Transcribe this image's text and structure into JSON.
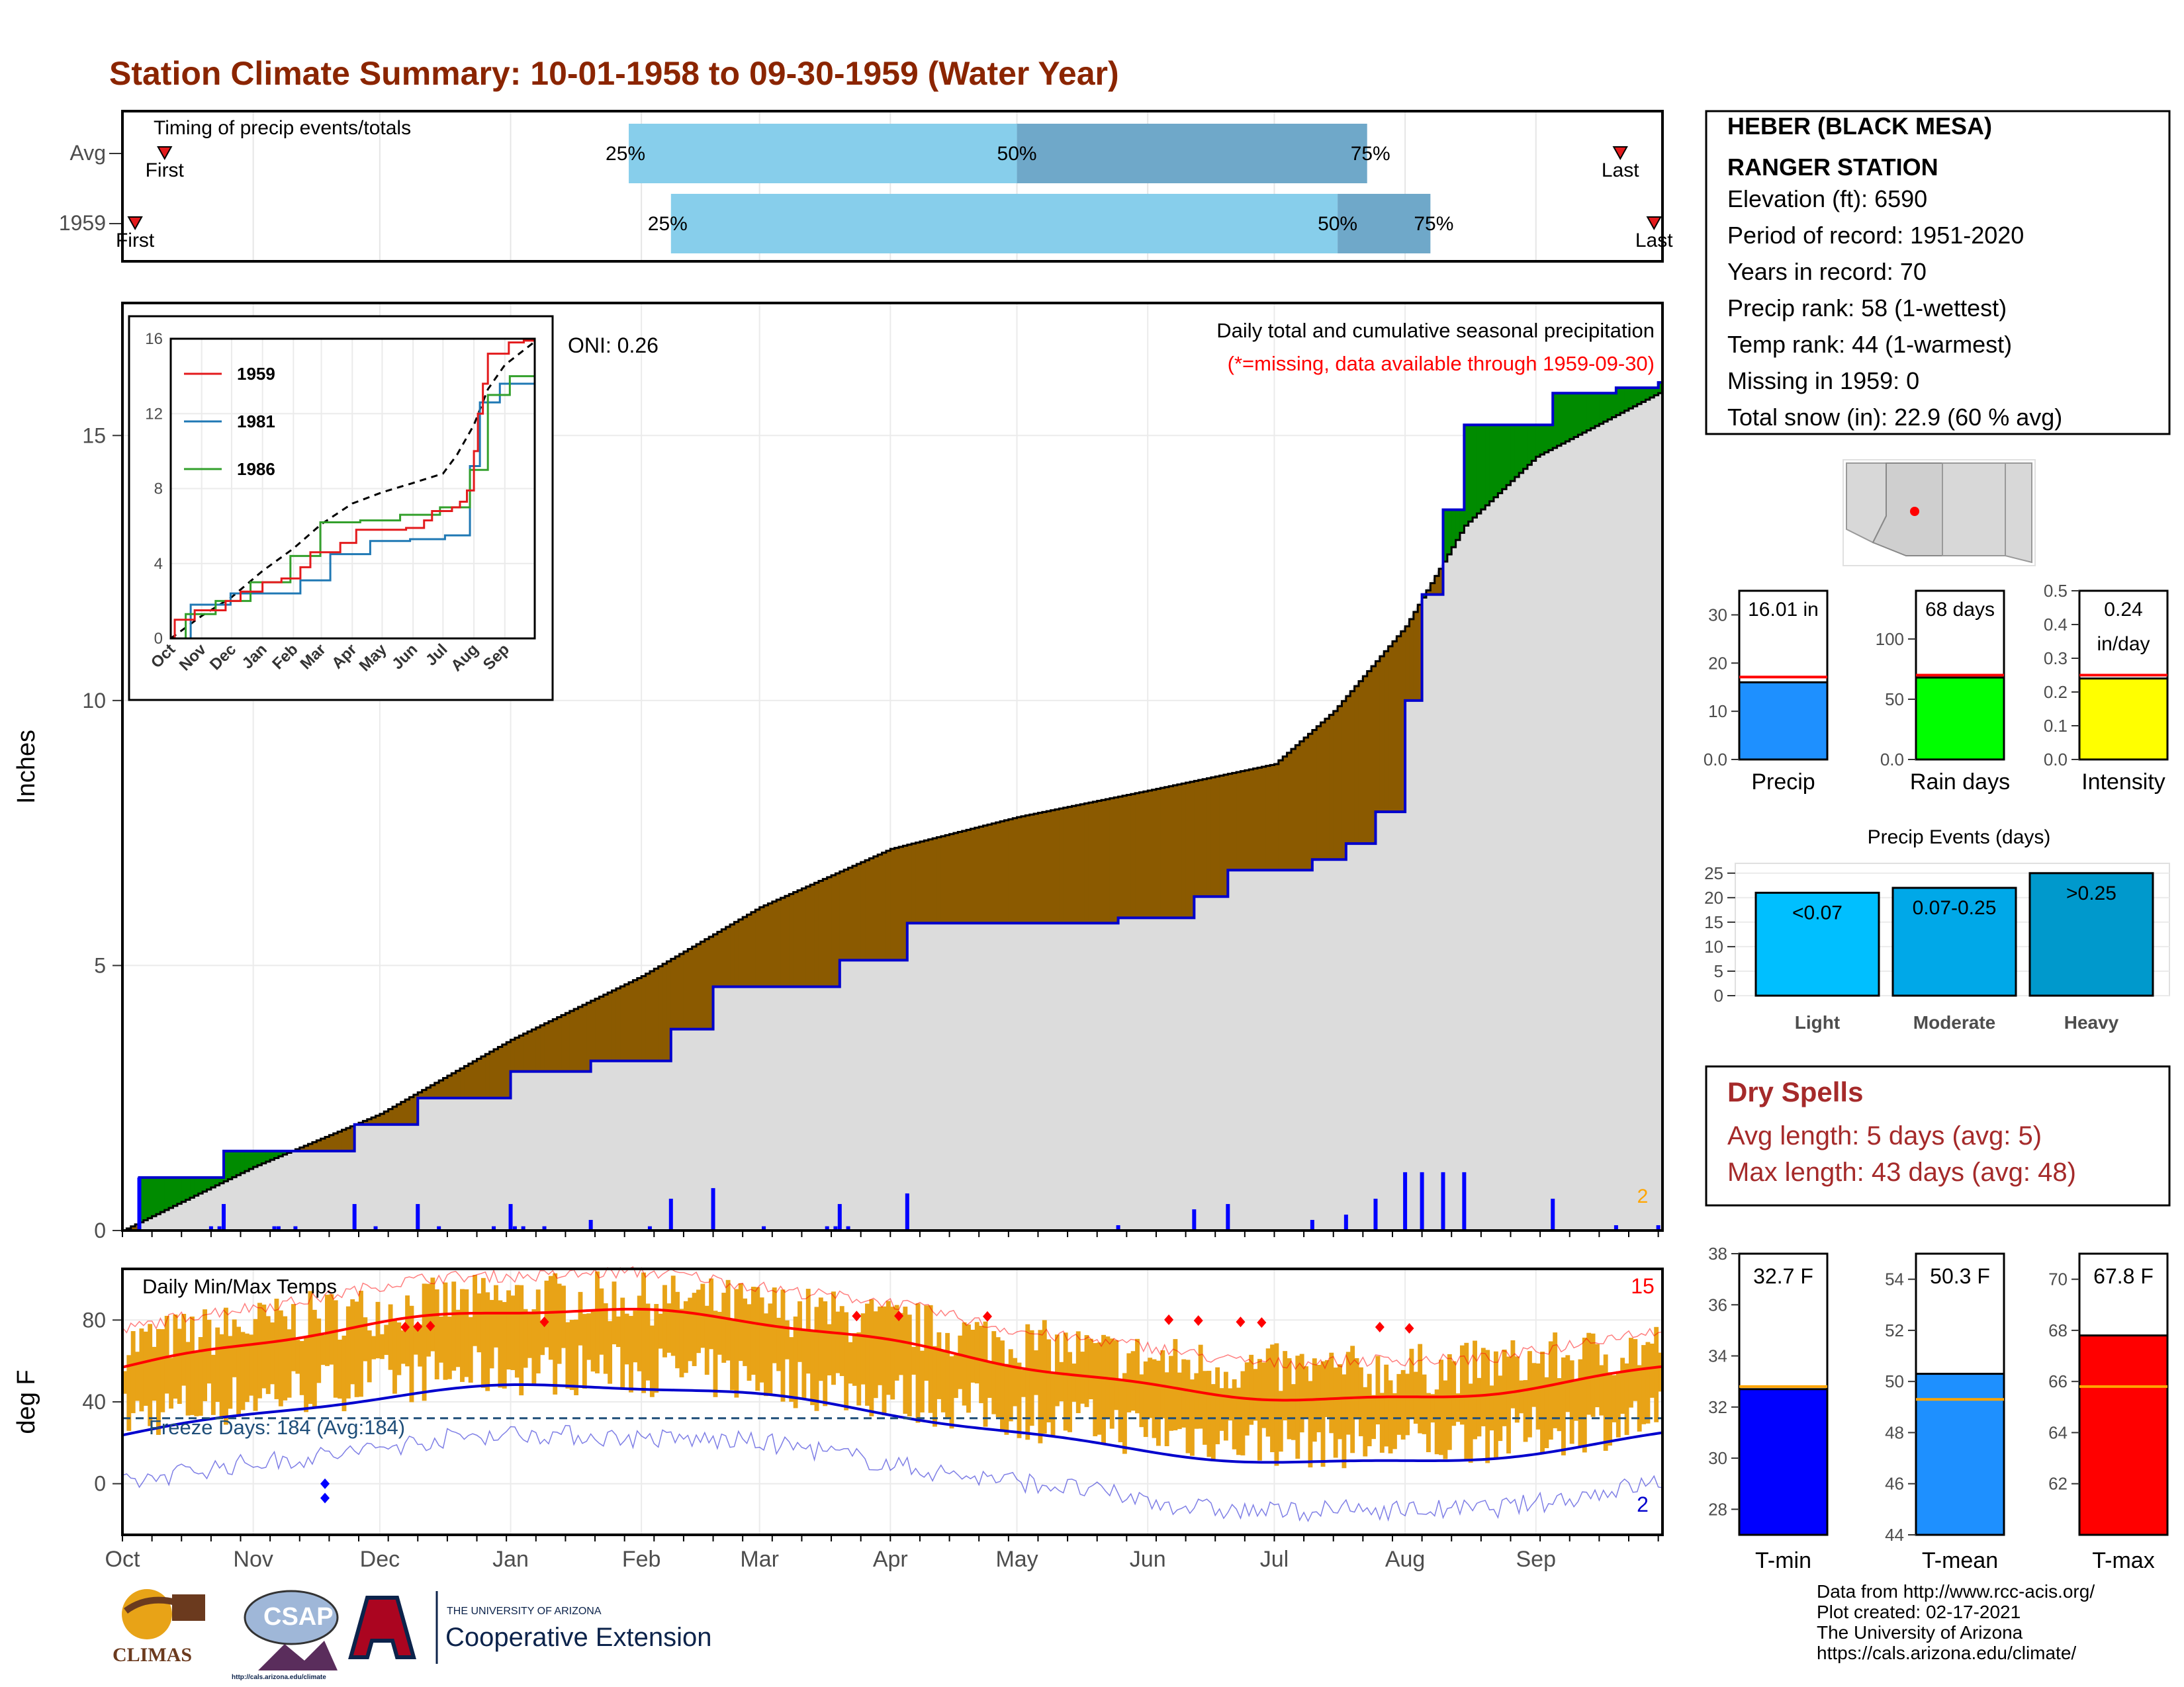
{
  "title": "Station Climate Summary: 10-01-1958 to 09-30-1959 (Water Year)",
  "colors": {
    "title": "#8B2500",
    "precip_bar_light": "#87CEEB",
    "precip_bar_dark": "#6FA8C9",
    "surplus": "#008B00",
    "deficit": "#8B5A00",
    "accum_fill": "#DCDCDC",
    "station_line": "#0000CD",
    "temp_bar": "#E8A317",
    "tmax_line": "#FF0000",
    "tmin_line": "#0000CD",
    "dry_spells": "#A52A2A"
  },
  "timing_panel": {
    "label": "Timing of precip events/totals",
    "rows": [
      {
        "name": "Avg",
        "first_label": "First",
        "last_label": "Last",
        "first_day": 10,
        "last_day": 355,
        "q25_day": 120,
        "q50_day": 212,
        "q75_day": 295,
        "q25_label": "25%",
        "q50_label": "50%",
        "q75_label": "75%"
      },
      {
        "name": "1959",
        "first_label": "First",
        "last_label": "Last",
        "first_day": 3,
        "last_day": 363,
        "q25_day": 130,
        "q50_day": 288,
        "q75_day": 310,
        "q25_label": "25%",
        "q50_label": "50%",
        "q75_label": "75%"
      }
    ]
  },
  "station": {
    "name_line1": "HEBER (BLACK MESA)",
    "name_line2": "RANGER STATION",
    "lines": [
      "Elevation (ft): 6590",
      "Period of record: 1951-2020",
      "Years in record: 70",
      "Precip rank: 58 (1-wettest)",
      "Temp rank: 44 (1-warmest)",
      "Missing in 1959: 0",
      "Total snow (in): 22.9 (60 % avg)"
    ]
  },
  "precip_panel": {
    "ylabel": "Inches",
    "oni": "ONI: 0.26",
    "subtitle": "Daily total and cumulative seasonal precipitation",
    "missing_note": "(*=missing, data available through 1959-09-30)",
    "right_count": "2",
    "ylim": [
      0,
      17.5
    ],
    "yticks": [
      0,
      5,
      10,
      15
    ]
  },
  "inset": {
    "ylim": [
      0,
      16
    ],
    "yticks": [
      0,
      4,
      8,
      12,
      16
    ],
    "xticks": [
      "Oct",
      "Nov",
      "Dec",
      "Jan",
      "Feb",
      "Mar",
      "Apr",
      "May",
      "Jun",
      "Jul",
      "Aug",
      "Sep"
    ],
    "legend": [
      "1959",
      "1981",
      "1986"
    ]
  },
  "temp_panel": {
    "ylabel": "deg F",
    "label": "Daily Min/Max Temps",
    "freeze": "Freeze Days: 184 (Avg:184)",
    "record_high_count": "15",
    "record_low_count": "2",
    "ylim": [
      -25,
      105
    ],
    "yticks": [
      0,
      40,
      80
    ],
    "freeze_line": 32
  },
  "months": [
    "Oct",
    "Nov",
    "Dec",
    "Jan",
    "Feb",
    "Mar",
    "Apr",
    "May",
    "Jun",
    "Jul",
    "Aug",
    "Sep"
  ],
  "mini_bars": [
    {
      "label": "Precip",
      "value_text": "16.01 in",
      "value": 16.01,
      "avg": 17.1,
      "ylim": [
        0,
        35
      ],
      "yticks": [
        0,
        10,
        20,
        30
      ],
      "color": "#1E90FF"
    },
    {
      "label": "Rain days",
      "value_text": "68 days",
      "value": 68,
      "avg": 70,
      "ylim": [
        0,
        140
      ],
      "yticks": [
        0,
        50,
        100
      ],
      "color": "#00FF00"
    },
    {
      "label": "Intensity",
      "value_text": "0.24",
      "value_text2": "in/day",
      "value": 0.24,
      "avg": 0.25,
      "ylim": [
        0,
        0.5
      ],
      "yticks": [
        0.0,
        0.1,
        0.2,
        0.3,
        0.4,
        0.5
      ],
      "color": "#FFFF00"
    }
  ],
  "events": {
    "title": "Precip Events (days)",
    "ylim": [
      0,
      27
    ],
    "yticks": [
      0,
      5,
      10,
      15,
      20,
      25
    ],
    "bars": [
      {
        "label": "Light",
        "range": "<0.07",
        "value": 21,
        "color": "#00BFFF"
      },
      {
        "label": "Moderate",
        "range": "0.07-0.25",
        "value": 22,
        "color": "#00A8E8"
      },
      {
        "label": "Heavy",
        "range": ">0.25",
        "value": 25,
        "color": "#0099CC"
      }
    ]
  },
  "dry_spells": {
    "title": "Dry Spells",
    "avg": "Avg length: 5 days (avg: 5)",
    "max": "Max length: 43 days (avg: 48)"
  },
  "temp_bars": [
    {
      "label": "T-min",
      "value_text": "32.7 F",
      "value": 32.7,
      "avg": 32.8,
      "ylim": [
        27,
        38
      ],
      "yticks": [
        28,
        30,
        32,
        34,
        36,
        38
      ],
      "color": "#0000FF"
    },
    {
      "label": "T-mean",
      "value_text": "50.3 F",
      "value": 50.3,
      "avg": 49.3,
      "ylim": [
        44,
        55
      ],
      "yticks": [
        44,
        46,
        48,
        50,
        52,
        54
      ],
      "color": "#1E90FF"
    },
    {
      "label": "T-max",
      "value_text": "67.8 F",
      "value": 67.8,
      "avg": 65.8,
      "ylim": [
        60,
        71
      ],
      "yticks": [
        62,
        64,
        66,
        68,
        70
      ],
      "color": "#FF0000"
    }
  ],
  "credits": [
    "Data from http://www.rcc-acis.org/",
    "Plot created: 02-17-2021",
    "The University of Arizona",
    "https://cals.arizona.edu/climate/"
  ],
  "logos": {
    "climas": "CLIMAS",
    "csap": "CSAP",
    "csap_url": "http://cals.arizona.edu/climate",
    "ua_small": "THE UNIVERSITY OF ARIZONA",
    "ua_big": "Cooperative Extension"
  },
  "chart_data": {
    "type": "line",
    "title": "Station Climate Summary: 10-01-1958 to 09-30-1959 (Water Year)",
    "ylabel": "Inches",
    "series": [
      {
        "name": "1959",
        "x": [
          "1958-10-01",
          "1958-10-05",
          "1958-10-25",
          "1958-11-25",
          "1958-12-10",
          "1959-01-01",
          "1959-01-20",
          "1959-02-08",
          "1959-02-18",
          "1959-03-20",
          "1959-04-05",
          "1959-05-05",
          "1959-05-25",
          "1959-06-12",
          "1959-06-20",
          "1959-07-10",
          "1959-07-18",
          "1959-07-25",
          "1959-08-01",
          "1959-08-05",
          "1959-08-10",
          "1959-08-15",
          "1959-09-05",
          "1959-09-20",
          "1959-09-30"
        ],
        "y": [
          0,
          1.0,
          1.5,
          2.0,
          2.5,
          3.0,
          3.2,
          3.8,
          4.6,
          5.1,
          5.8,
          5.8,
          5.9,
          6.3,
          6.8,
          7.0,
          7.3,
          7.9,
          10.0,
          12.0,
          13.6,
          15.2,
          15.8,
          15.9,
          16.0
        ]
      },
      {
        "name": "Average",
        "x": [
          "1958-10-01",
          "1958-11-01",
          "1958-12-01",
          "1959-01-01",
          "1959-02-01",
          "1959-03-01",
          "1959-04-01",
          "1959-05-01",
          "1959-06-01",
          "1959-07-01",
          "1959-07-15",
          "1959-08-01",
          "1959-08-15",
          "1959-09-01",
          "1959-09-30"
        ],
        "y": [
          0,
          1.2,
          2.2,
          3.6,
          4.8,
          6.1,
          7.2,
          7.8,
          8.3,
          8.8,
          9.8,
          11.4,
          13.3,
          14.6,
          15.8
        ]
      }
    ],
    "ylim": [
      0,
      17.5
    ]
  }
}
